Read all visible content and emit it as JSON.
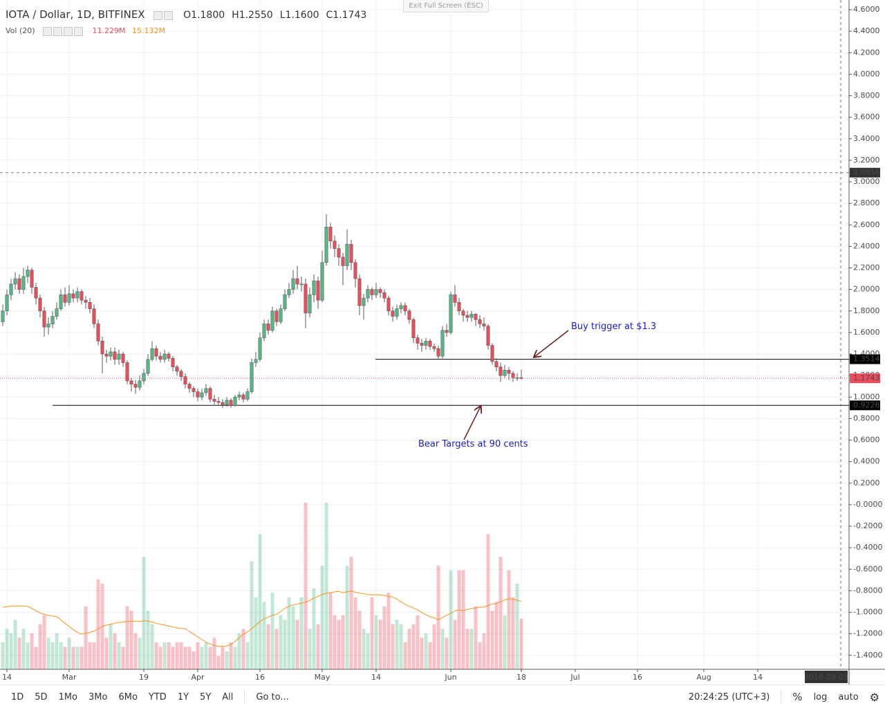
{
  "chart_data": {
    "type": "candlestick",
    "title": "IOTA / Dollar, 1D, BITFINEX",
    "open": [
      1.7,
      1.8,
      1.95,
      2.05,
      2.1,
      2.0,
      2.12,
      2.18,
      2.02,
      1.92,
      1.8,
      1.65,
      1.68,
      1.75,
      1.82,
      1.95,
      1.88,
      1.96,
      1.92,
      1.98,
      1.9,
      1.88,
      1.82,
      1.68,
      1.52,
      1.4,
      1.38,
      1.42,
      1.35,
      1.4,
      1.32,
      1.15,
      1.12,
      1.09,
      1.15,
      1.22,
      1.35,
      1.45,
      1.38,
      1.35,
      1.4,
      1.36,
      1.28,
      1.24,
      1.19,
      1.12,
      1.08,
      1.05,
      1.0,
      1.04,
      1.08,
      0.98,
      0.96,
      0.95,
      0.93,
      0.97,
      0.92,
      1.0,
      1.02,
      0.98,
      1.05,
      1.32,
      1.35,
      1.55,
      1.68,
      1.62,
      1.8,
      1.7,
      1.82,
      1.95,
      2.0,
      2.1,
      2.05,
      2.05,
      1.78,
      1.95,
      2.08,
      1.9,
      2.25,
      2.58,
      2.45,
      2.38,
      2.3,
      2.22,
      2.42,
      2.25,
      2.1,
      1.85,
      1.92,
      2.0,
      1.95,
      2.0,
      1.97,
      1.92,
      1.8,
      1.75,
      1.82,
      1.85,
      1.8,
      1.72,
      1.55,
      1.5,
      1.48,
      1.52,
      1.47,
      1.45,
      1.38,
      1.62,
      1.6,
      1.95,
      1.88,
      1.8,
      1.76,
      1.74,
      1.77,
      1.72,
      1.68,
      1.66,
      1.48,
      1.33,
      1.28,
      1.2,
      1.25,
      1.22,
      1.18,
      1.18
    ],
    "high": [
      1.86,
      2.0,
      2.1,
      2.16,
      2.14,
      2.2,
      2.22,
      2.2,
      2.06,
      1.95,
      1.84,
      1.74,
      1.8,
      1.88,
      2.0,
      2.02,
      2.04,
      2.0,
      2.02,
      2.0,
      1.94,
      1.92,
      1.86,
      1.72,
      1.56,
      1.44,
      1.46,
      1.46,
      1.44,
      1.42,
      1.34,
      1.18,
      1.16,
      1.2,
      1.26,
      1.4,
      1.52,
      1.48,
      1.42,
      1.44,
      1.42,
      1.38,
      1.3,
      1.26,
      1.22,
      1.14,
      1.1,
      1.08,
      1.08,
      1.12,
      1.1,
      1.02,
      1.0,
      0.98,
      1.0,
      0.99,
      1.02,
      1.05,
      1.04,
      1.08,
      1.36,
      1.42,
      1.6,
      1.72,
      1.72,
      1.84,
      1.82,
      1.86,
      2.0,
      2.06,
      2.18,
      2.22,
      2.12,
      2.1,
      2.02,
      2.14,
      2.12,
      2.36,
      2.7,
      2.62,
      2.5,
      2.42,
      2.34,
      2.56,
      2.46,
      2.28,
      2.14,
      1.96,
      2.04,
      2.02,
      2.06,
      2.02,
      2.0,
      1.94,
      1.84,
      1.86,
      1.88,
      1.88,
      1.82,
      1.74,
      1.58,
      1.54,
      1.55,
      1.54,
      1.5,
      1.48,
      1.66,
      1.68,
      1.98,
      2.04,
      1.92,
      1.82,
      1.8,
      1.8,
      1.78,
      1.76,
      1.74,
      1.68,
      1.5,
      1.36,
      1.32,
      1.3,
      1.28,
      1.24,
      1.22,
      1.255
    ],
    "low": [
      1.66,
      1.76,
      1.9,
      2.0,
      1.96,
      1.96,
      2.06,
      1.96,
      1.86,
      1.74,
      1.56,
      1.58,
      1.64,
      1.72,
      1.8,
      1.84,
      1.85,
      1.88,
      1.88,
      1.86,
      1.82,
      1.78,
      1.64,
      1.48,
      1.22,
      1.32,
      1.34,
      1.3,
      1.3,
      1.28,
      1.12,
      1.05,
      1.03,
      1.06,
      1.12,
      1.2,
      1.33,
      1.34,
      1.32,
      1.32,
      1.33,
      1.24,
      1.2,
      1.15,
      1.08,
      1.04,
      1.0,
      0.96,
      0.97,
      1.01,
      0.95,
      0.93,
      0.92,
      0.9,
      0.91,
      0.9,
      0.91,
      0.97,
      0.95,
      0.96,
      1.03,
      1.28,
      1.33,
      1.52,
      1.58,
      1.6,
      1.66,
      1.68,
      1.8,
      1.92,
      1.96,
      2.0,
      1.98,
      1.64,
      1.74,
      1.88,
      1.82,
      1.88,
      2.22,
      2.38,
      2.3,
      2.22,
      2.04,
      2.18,
      2.18,
      2.02,
      1.76,
      1.72,
      1.88,
      1.9,
      1.92,
      1.92,
      1.88,
      1.76,
      1.7,
      1.72,
      1.78,
      1.76,
      1.68,
      1.5,
      1.44,
      1.42,
      1.44,
      1.44,
      1.42,
      1.35,
      1.36,
      1.56,
      1.58,
      1.84,
      1.76,
      1.7,
      1.7,
      1.7,
      1.66,
      1.64,
      1.62,
      1.44,
      1.3,
      1.24,
      1.14,
      1.18,
      1.16,
      1.14,
      1.15,
      1.16
    ],
    "close": [
      1.8,
      1.95,
      2.05,
      2.1,
      2.0,
      2.12,
      2.18,
      2.02,
      1.92,
      1.8,
      1.65,
      1.68,
      1.75,
      1.82,
      1.95,
      1.88,
      1.96,
      1.92,
      1.98,
      1.9,
      1.88,
      1.82,
      1.68,
      1.52,
      1.4,
      1.38,
      1.42,
      1.35,
      1.4,
      1.32,
      1.15,
      1.12,
      1.09,
      1.15,
      1.22,
      1.35,
      1.45,
      1.38,
      1.35,
      1.4,
      1.36,
      1.28,
      1.24,
      1.19,
      1.12,
      1.08,
      1.05,
      1.0,
      1.04,
      1.08,
      0.98,
      0.96,
      0.95,
      0.93,
      0.97,
      0.92,
      1.0,
      1.02,
      0.98,
      1.05,
      1.32,
      1.35,
      1.55,
      1.68,
      1.62,
      1.8,
      1.7,
      1.82,
      1.95,
      2.0,
      2.1,
      2.05,
      2.05,
      1.78,
      1.95,
      2.08,
      1.9,
      2.25,
      2.58,
      2.45,
      2.38,
      2.3,
      2.22,
      2.42,
      2.25,
      2.1,
      1.85,
      1.92,
      2.0,
      1.95,
      2.0,
      1.97,
      1.92,
      1.8,
      1.75,
      1.82,
      1.85,
      1.8,
      1.72,
      1.55,
      1.5,
      1.48,
      1.52,
      1.47,
      1.45,
      1.38,
      1.62,
      1.6,
      1.95,
      1.88,
      1.8,
      1.76,
      1.74,
      1.77,
      1.72,
      1.68,
      1.66,
      1.48,
      1.33,
      1.28,
      1.2,
      1.25,
      1.22,
      1.18,
      1.18,
      1.1743
    ],
    "up_color": "#53b987",
    "down_color": "#eb4d5c",
    "xlim": [
      -0.67,
      204
    ],
    "ylim": [
      -1.53,
      4.69
    ],
    "grid": true,
    "xticks": [
      {
        "value": 1,
        "label": "14"
      },
      {
        "value": 16,
        "label": "Mar"
      },
      {
        "value": 34,
        "label": "19"
      },
      {
        "value": 47,
        "label": "Apr"
      },
      {
        "value": 62,
        "label": "16"
      },
      {
        "value": 77,
        "label": "May"
      },
      {
        "value": 90,
        "label": "14"
      },
      {
        "value": 108,
        "label": "Jun"
      },
      {
        "value": 125,
        "label": "18"
      },
      {
        "value": 138,
        "label": "Jul"
      },
      {
        "value": 153,
        "label": "16"
      },
      {
        "value": 169,
        "label": "Aug"
      },
      {
        "value": 182,
        "label": "14"
      }
    ],
    "yticks": [
      {
        "value": 4.6,
        "label": "4.6000"
      },
      {
        "value": 4.4,
        "label": "4.4000"
      },
      {
        "value": 4.2,
        "label": "4.2000"
      },
      {
        "value": 4.0,
        "label": "4.0000"
      },
      {
        "value": 3.8,
        "label": "3.8000"
      },
      {
        "value": 3.6,
        "label": "3.6000"
      },
      {
        "value": 3.4,
        "label": "3.4000"
      },
      {
        "value": 3.2,
        "label": "3.2000"
      },
      {
        "value": 3.0,
        "label": "3.0000"
      },
      {
        "value": 2.8,
        "label": "2.8000"
      },
      {
        "value": 2.6,
        "label": "2.6000"
      },
      {
        "value": 2.4,
        "label": "2.4000"
      },
      {
        "value": 2.2,
        "label": "2.2000"
      },
      {
        "value": 2.0,
        "label": "2.0000"
      },
      {
        "value": 1.8,
        "label": "1.8000"
      },
      {
        "value": 1.6,
        "label": "1.6000"
      },
      {
        "value": 1.4,
        "label": "1.4000"
      },
      {
        "value": 1.2,
        "label": "1.2000"
      },
      {
        "value": 1.0,
        "label": "1.0000"
      },
      {
        "value": 0.8,
        "label": "0.8000"
      },
      {
        "value": 0.6,
        "label": "0.6000"
      },
      {
        "value": 0.4,
        "label": "0.4000"
      },
      {
        "value": 0.2,
        "label": "0.2000"
      },
      {
        "value": 0,
        "label": "-0.0000"
      },
      {
        "value": -0.2,
        "label": "-0.2000"
      },
      {
        "value": -0.4,
        "label": "-0.4000"
      },
      {
        "value": -0.6,
        "label": "-0.6000"
      },
      {
        "value": -0.8,
        "label": "-0.8000"
      },
      {
        "value": -1.0,
        "label": "-1.0000"
      },
      {
        "value": -1.2,
        "label": "-1.2000"
      },
      {
        "value": -1.4,
        "label": "-1.4000"
      }
    ],
    "levels": [
      1.3514,
      0.9226
    ],
    "cursor": {
      "x": {
        "value": 202,
        "label": "2018-09-03"
      },
      "y": 3.0856
    },
    "annotations": [
      "Buy trigger at $1.3",
      "Bear Targets at 90 cents"
    ],
    "ohlc_legend": [
      {
        "key": "O",
        "text": "1.1800"
      },
      {
        "key": "H",
        "text": "1.2550"
      },
      {
        "key": "L",
        "text": "1.1600"
      },
      {
        "key": "C",
        "text": "1.1743"
      }
    ],
    "volume": {
      "name": "Vol (20)",
      "values": [
        6,
        9,
        8,
        11,
        7,
        9,
        6,
        8,
        5,
        10,
        12,
        7,
        6,
        8,
        6,
        5,
        7,
        5,
        5,
        5,
        14,
        6,
        6,
        20,
        19,
        7,
        10,
        8,
        6,
        5,
        14,
        13,
        8,
        7,
        25,
        13,
        10,
        6,
        5,
        6,
        6,
        5,
        6,
        6,
        5,
        5,
        4,
        6,
        5,
        6,
        5,
        7,
        3,
        5,
        4,
        6,
        5,
        8,
        9,
        6,
        24,
        16,
        30,
        15,
        10,
        17,
        9,
        12,
        11,
        16,
        14,
        11,
        16,
        37,
        9,
        18,
        10,
        23,
        37,
        17,
        12,
        11,
        12,
        23,
        25,
        16,
        13,
        9,
        8,
        16,
        12,
        11,
        14,
        17,
        10,
        11,
        10,
        6,
        9,
        10,
        12,
        7,
        8,
        6,
        10,
        23,
        9,
        7,
        22,
        11,
        22,
        22,
        9,
        9,
        14,
        6,
        8,
        30,
        13,
        15,
        25,
        12,
        22,
        16,
        19,
        11.229
      ],
      "value_label": "11.229M",
      "ma": [
        13.8,
        13.9,
        14.0,
        14.0,
        14.1,
        14.0,
        14.0,
        13.5,
        13.0,
        12.5,
        12.2,
        12.0,
        11.8,
        11.7,
        11.0,
        10.2,
        9.5,
        8.8,
        8.2,
        7.8,
        8.0,
        8.2,
        8.5,
        9.0,
        9.5,
        9.8,
        10.0,
        10.2,
        10.4,
        10.5,
        10.6,
        10.7,
        10.7,
        10.6,
        10.8,
        10.7,
        10.5,
        10.2,
        10.0,
        9.8,
        9.6,
        9.4,
        9.2,
        9.1,
        9.0,
        8.4,
        7.8,
        7.2,
        6.6,
        6.0,
        5.6,
        5.3,
        5.1,
        5.1,
        5.2,
        5.5,
        6.2,
        7.0,
        7.8,
        8.3,
        9.0,
        9.8,
        10.6,
        11.2,
        11.6,
        12.0,
        12.2,
        12.8,
        13.5,
        14.0,
        14.3,
        14.5,
        14.7,
        14.9,
        15.3,
        15.8,
        16.2,
        16.6,
        16.9,
        17.0,
        17.2,
        17.3,
        17.0,
        17.2,
        17.4,
        17.1,
        16.9,
        16.8,
        16.6,
        16.5,
        16.6,
        16.5,
        16.4,
        16.2,
        16.0,
        15.6,
        15.0,
        14.4,
        14.0,
        13.6,
        13.2,
        12.6,
        12.1,
        11.7,
        11.4,
        11.0,
        11.5,
        12.0,
        12.4,
        13.0,
        13.2,
        13.0,
        13.3,
        13.5,
        13.6,
        13.8,
        13.8,
        14.2,
        14.5,
        14.6,
        15.0,
        15.4,
        15.7,
        15.6,
        15.3,
        15.132
      ],
      "ma_label": "15.132M",
      "ma_color": "#f7931e"
    }
  },
  "ui": {
    "exit_full_screen": "Exit Full Screen (ESC)",
    "ranges": [
      "1D",
      "5D",
      "1Mo",
      "3Mo",
      "6Mo",
      "YTD",
      "1Y",
      "5Y",
      "All"
    ],
    "goto": "Go to...",
    "clock": "20:24:25 (UTC+3)",
    "percent": "%",
    "log": "log",
    "auto": "auto"
  }
}
